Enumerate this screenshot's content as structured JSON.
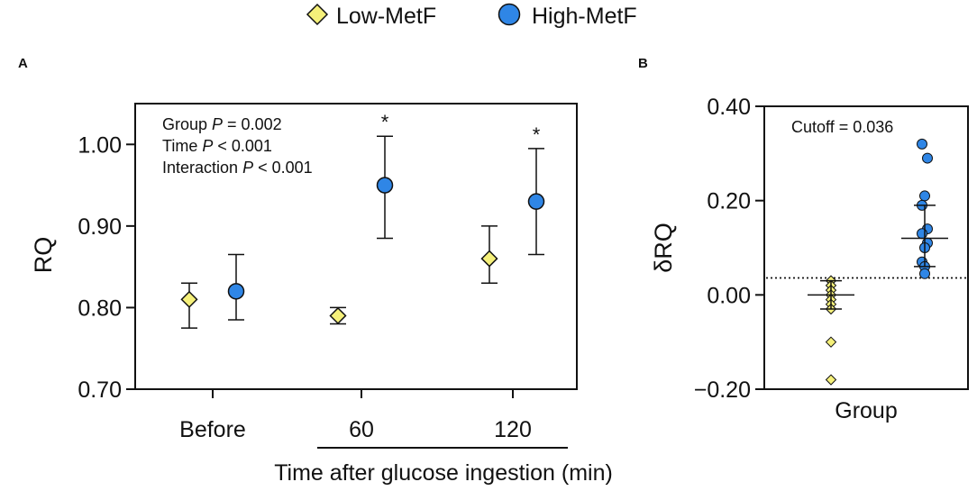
{
  "legend": {
    "low_label": "Low-MetF",
    "high_label": "High-MetF"
  },
  "colors": {
    "low": "#f5f07a",
    "high": "#2f86e6",
    "stroke": "#111111"
  },
  "chart_data": [
    {
      "panel_label": "A",
      "type": "scatter",
      "ylabel": "RQ",
      "xlabel": "Time after glucose ingestion (min)",
      "ylim": [
        0.7,
        1.05
      ],
      "yticks": [
        0.7,
        0.8,
        0.9,
        1.0
      ],
      "ytick_labels": [
        "0.70",
        "0.80",
        "0.90",
        "1.00"
      ],
      "categories": [
        "Before",
        "60",
        "120"
      ],
      "series": [
        {
          "name": "Low-MetF",
          "marker": "diamond",
          "means": [
            0.81,
            0.79,
            0.86
          ],
          "err_low": [
            0.775,
            0.78,
            0.83
          ],
          "err_high": [
            0.83,
            0.8,
            0.9
          ]
        },
        {
          "name": "High-MetF",
          "marker": "circle",
          "means": [
            0.82,
            0.95,
            0.93
          ],
          "err_low": [
            0.785,
            0.885,
            0.865
          ],
          "err_high": [
            0.865,
            1.01,
            0.995
          ]
        }
      ],
      "significance": [
        "",
        "*",
        "*"
      ],
      "stats": {
        "line1_prefix": "Group ",
        "line1_p": "P",
        "line1_value": " = 0.002",
        "line2_prefix": "Time ",
        "line2_p": "P",
        "line2_value": " < 0.001",
        "line3_prefix": "Interaction ",
        "line3_p": "P",
        "line3_value": " < 0.001"
      }
    },
    {
      "panel_label": "B",
      "type": "scatter",
      "ylabel": "δRQ",
      "xlabel": "Group",
      "ylim": [
        -0.2,
        0.4
      ],
      "yticks": [
        -0.2,
        0.0,
        0.2,
        0.4
      ],
      "ytick_labels": [
        "−0.20",
        "0.00",
        "0.20",
        "0.40"
      ],
      "cutoff": 0.036,
      "cutoff_label": "Cutoff = 0.036",
      "low": {
        "values": [
          0.03,
          0.02,
          0.01,
          0.0,
          -0.01,
          -0.02,
          -0.03,
          -0.1,
          -0.18
        ],
        "mean": 0.0,
        "err_low": -0.03,
        "err_high": 0.03
      },
      "high": {
        "values": [
          0.32,
          0.29,
          0.21,
          0.19,
          0.14,
          0.13,
          0.11,
          0.1,
          0.07,
          0.06,
          0.045
        ],
        "mean": 0.12,
        "err_low": 0.06,
        "err_high": 0.19
      }
    }
  ]
}
